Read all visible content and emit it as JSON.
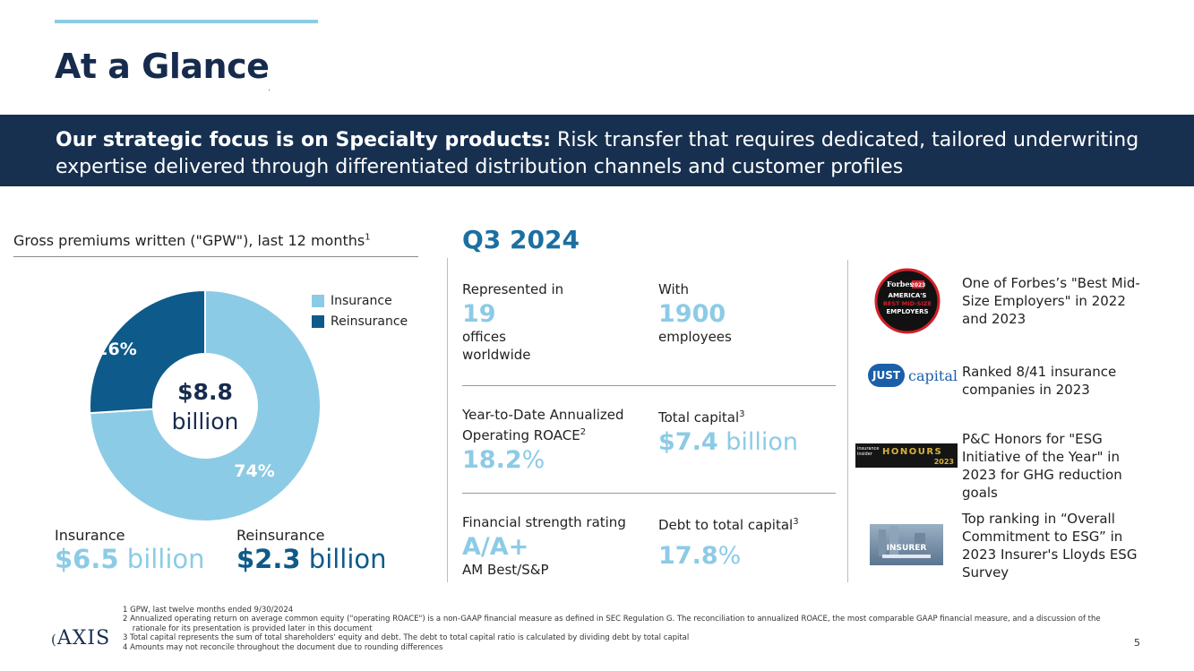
{
  "page": {
    "title": "At a Glance",
    "page_number": "5"
  },
  "banner": {
    "bold": "Our strategic focus is on Specialty products:",
    "text": " Risk transfer that requires dedicated, tailored underwriting expertise delivered through differentiated distribution channels and customer profiles"
  },
  "gpw": {
    "title": "Gross premiums written (\"GPW\"), last 12 months",
    "title_sup": "1",
    "center_value": "$8.8",
    "center_unit": "billion",
    "legend": [
      {
        "label": "Insurance",
        "color": "#8ccbe6"
      },
      {
        "label": "Reinsurance",
        "color": "#0e5a8a"
      }
    ],
    "insurance": {
      "label": "Insurance",
      "value": "$6.5",
      "unit": " billion",
      "pct_label": "74%"
    },
    "reinsurance": {
      "label": "Reinsurance",
      "value": "$2.3",
      "unit": " billion",
      "pct_label": "26%"
    }
  },
  "chart_data": {
    "type": "pie",
    "categories": [
      "Insurance",
      "Reinsurance"
    ],
    "values": [
      74,
      26
    ],
    "colors": [
      "#8ccbe6",
      "#0e5a8a"
    ],
    "title": "",
    "donut": true,
    "legend_position": "top-right"
  },
  "q3": {
    "heading": "Q3 2024",
    "offices": {
      "label": "Represented in",
      "value": "19",
      "sub1": "offices",
      "sub2": "worldwide"
    },
    "employees": {
      "label": "With",
      "value": "1900",
      "sub1": "employees"
    },
    "roace": {
      "label1": "Year-to-Date Annualized",
      "label2": "Operating ROACE",
      "sup": "2",
      "value": "18.2",
      "unit": "%"
    },
    "capital": {
      "label": "Total capital",
      "sup": "3",
      "value": "$7.4",
      "unit": " billion"
    },
    "rating": {
      "label": "Financial strength rating",
      "value": "A/A+",
      "sub": "AM Best/S&P"
    },
    "debt": {
      "label": "Debt to total capital",
      "sup": "3",
      "value": "17.8",
      "unit": "%"
    }
  },
  "awards": [
    {
      "text": "One of Forbes’s \"Best Mid-Size Employers\" in 2022 and 2023",
      "logo": "forbes-badge"
    },
    {
      "text": "Ranked 8/41 insurance companies in 2023",
      "logo": "just-capital"
    },
    {
      "text": "P&C Honors for \"ESG Initiative of the Year\" in 2023 for GHG reduction goals",
      "logo": "insurance-insider-honours"
    },
    {
      "text": "Top ranking in “Overall Commitment to ESG” in 2023 Insurer's Lloyds ESG Survey",
      "logo": "insurer-survey"
    }
  ],
  "logos": {
    "forbes_brand": "Forbes",
    "forbes_year": "2023",
    "forbes_line1": "AMERICA'S",
    "forbes_line2": "BEST MID-SIZE",
    "forbes_line3": "EMPLOYERS",
    "just_a": "JUST",
    "just_b": "capital",
    "honours_a": "insurance insider",
    "honours_b": "HONOURS",
    "honours_year": "2023",
    "insurer": "INSURER",
    "axis": "AXIS"
  },
  "footnotes": [
    "1  GPW, last twelve months ended 9/30/2024",
    "2  Annualized operating return on average common equity (\"operating ROACE\") is a non-GAAP financial measure as defined in SEC Regulation G. The reconciliation to annualized ROACE, the most comparable GAAP financial measure, and a discussion of the",
    "    rationale for its presentation is provided later in this document",
    "3  Total capital represents the sum of total shareholders' equity and debt. The debt to total capital ratio is calculated by dividing debt by total capital",
    "4  Amounts may not reconcile throughout the document due to rounding differences"
  ]
}
